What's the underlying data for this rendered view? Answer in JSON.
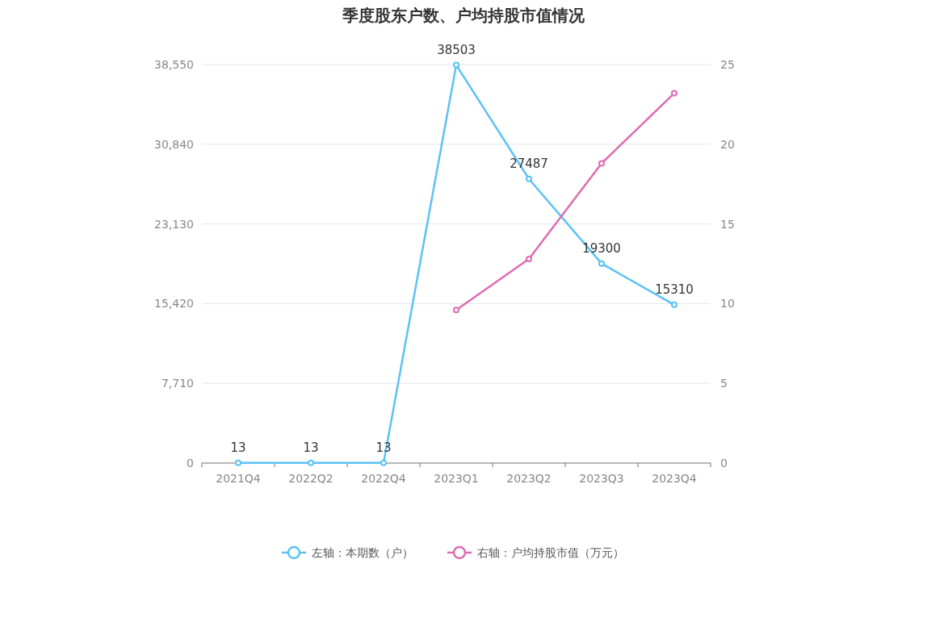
{
  "chart_data": {
    "type": "line",
    "title": "季度股东户数、户均持股市值情况",
    "categories": [
      "2021Q4",
      "2022Q2",
      "2022Q4",
      "2023Q1",
      "2023Q2",
      "2023Q3",
      "2023Q4"
    ],
    "series": [
      {
        "name": "左轴：本期数（户）",
        "color": "#5bc2f5",
        "values": [
          13,
          13,
          13,
          38503,
          27487,
          19300,
          15310
        ],
        "value_labels": [
          "13",
          "13",
          "13",
          "38503",
          "27487",
          "19300",
          "15310"
        ]
      },
      {
        "name": "右轴：户均持股市值（万元）",
        "color": "#dd6bb4",
        "axis": "y2",
        "values": [
          null,
          null,
          null,
          9.6,
          12.8,
          18.8,
          23.2
        ]
      }
    ],
    "ylim": [
      0,
      38550
    ],
    "yticks": [
      0,
      {
        "value": 7710,
        "label": "7,710"
      },
      {
        "value": 15420,
        "label": "15,420"
      },
      {
        "value": 23130,
        "label": "23,130"
      },
      {
        "value": 30840,
        "label": "30,840"
      },
      {
        "value": 38550,
        "label": "38,550"
      }
    ],
    "y2lim": [
      0,
      25
    ],
    "y2ticks": [
      0,
      5,
      10,
      15,
      20,
      25
    ],
    "grid": "y",
    "legend": "bottom",
    "marker": "circle",
    "line_style": "solid"
  }
}
